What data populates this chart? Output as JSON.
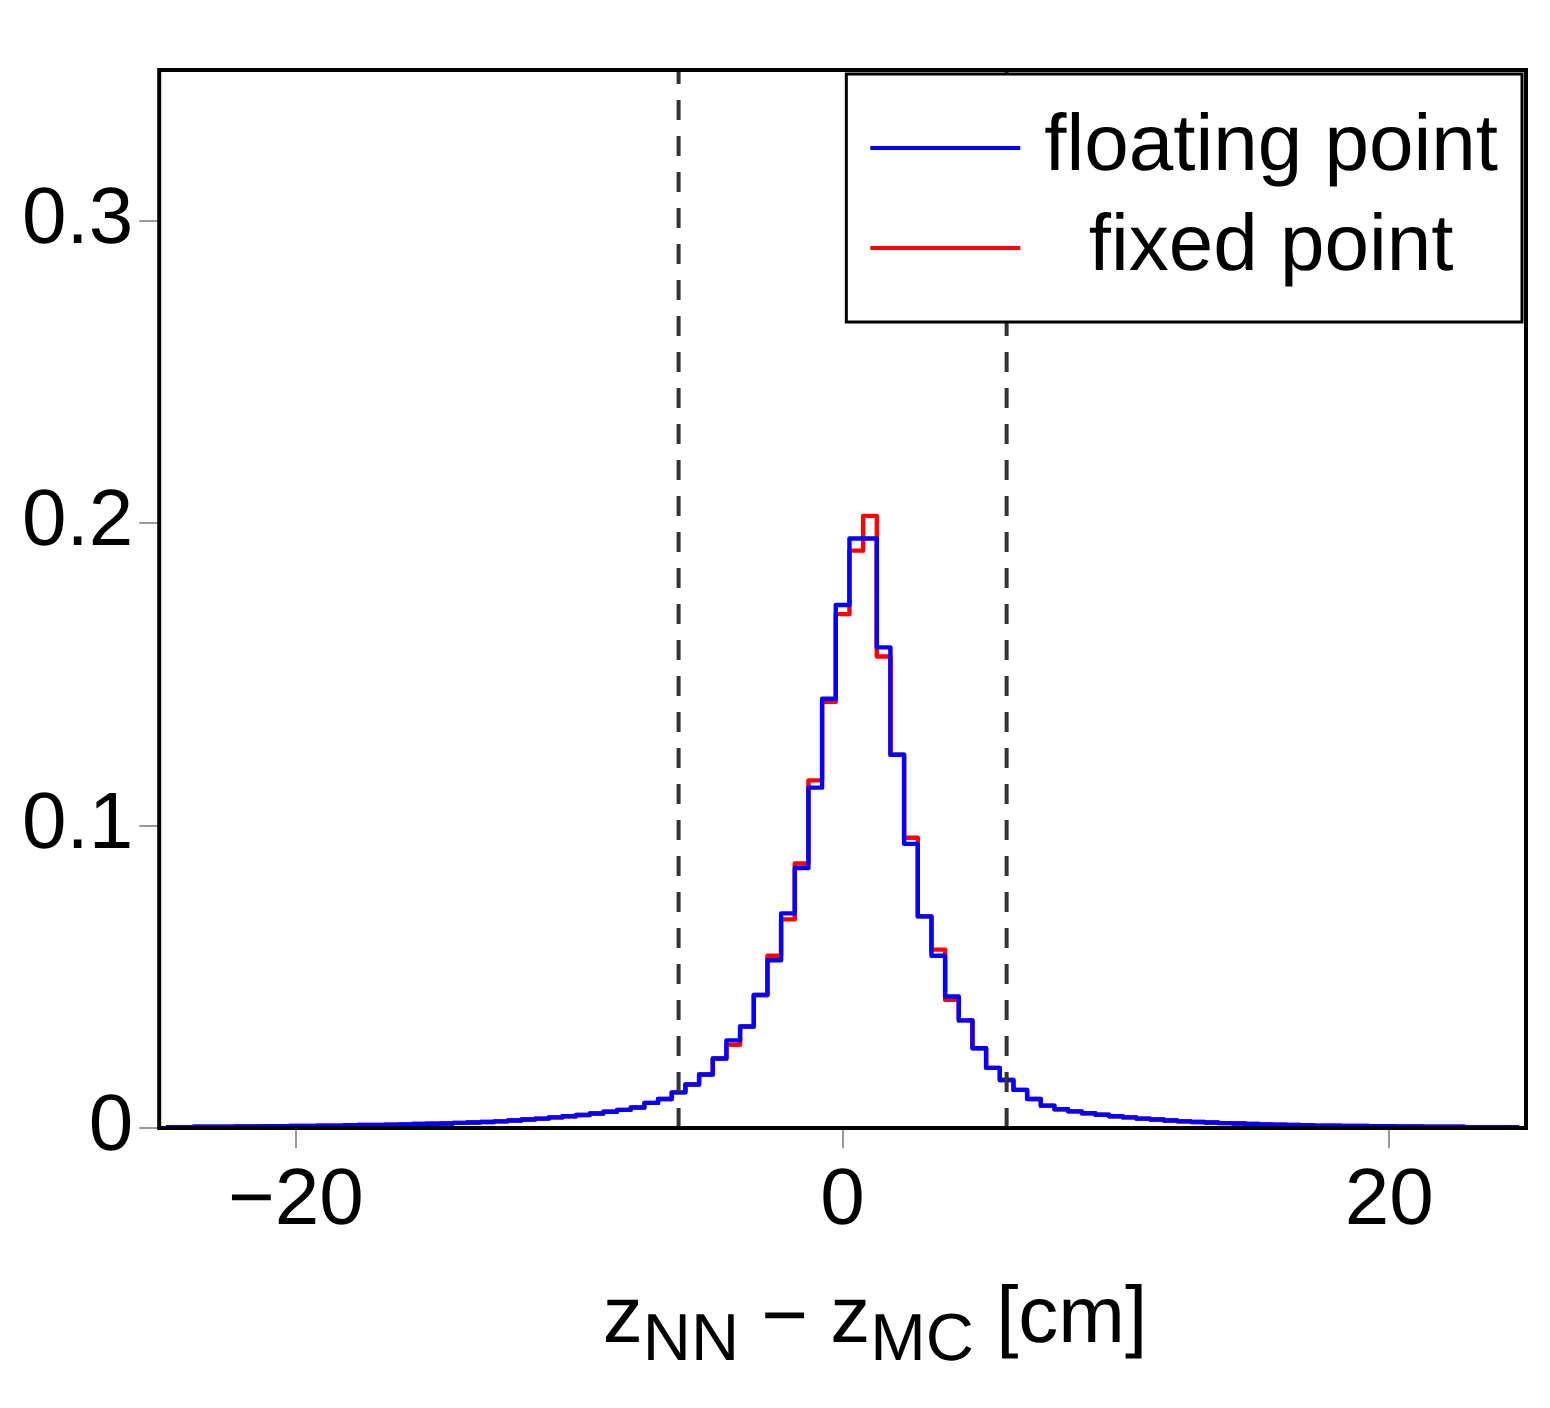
{
  "chart_data": {
    "type": "histogram",
    "xlabel": "z$_{NN}$ − z$_{MC}$ [cm]",
    "bins": [
      -24.75,
      -24.25,
      -23.75,
      -23.25,
      -22.75,
      -22.25,
      -21.75,
      -21.25,
      -20.75,
      -20.25,
      -19.75,
      -19.25,
      -18.75,
      -18.25,
      -17.75,
      -17.25,
      -16.75,
      -16.25,
      -15.75,
      -15.25,
      -14.75,
      -14.25,
      -13.75,
      -13.25,
      -12.75,
      -12.25,
      -11.75,
      -11.25,
      -10.75,
      -10.25,
      -9.75,
      -9.25,
      -8.75,
      -8.25,
      -7.75,
      -7.25,
      -6.75,
      -6.25,
      -5.75,
      -5.25,
      -4.75,
      -4.25,
      -3.75,
      -3.25,
      -2.75,
      -2.25,
      -1.75,
      -1.25,
      -0.75,
      -0.25,
      0.25,
      0.75,
      1.25,
      1.75,
      2.25,
      2.75,
      3.25,
      3.75,
      4.25,
      4.75,
      5.25,
      5.75,
      6.25,
      6.75,
      7.25,
      7.75,
      8.25,
      8.75,
      9.25,
      9.75,
      10.25,
      10.75,
      11.25,
      11.75,
      12.25,
      12.75,
      13.25,
      13.75,
      14.25,
      14.75,
      15.25,
      15.75,
      16.25,
      16.75,
      17.25,
      17.75,
      18.25,
      18.75,
      19.25,
      19.75,
      20.25,
      20.75,
      21.25,
      21.75,
      22.25,
      22.75,
      23.25,
      23.75,
      24.25,
      24.75
    ],
    "series": [
      {
        "name": "floating point",
        "color": "#0000ff",
        "values": [
          0.0003,
          0.0003,
          0.0004,
          0.0004,
          0.0004,
          0.0005,
          0.0005,
          0.0006,
          0.0006,
          0.0007,
          0.0007,
          0.0008,
          0.0008,
          0.0009,
          0.001,
          0.001,
          0.0011,
          0.0012,
          0.0013,
          0.0014,
          0.0015,
          0.0017,
          0.0018,
          0.002,
          0.0022,
          0.0025,
          0.0028,
          0.0031,
          0.0035,
          0.0039,
          0.0043,
          0.0048,
          0.0054,
          0.006,
          0.0068,
          0.0083,
          0.0096,
          0.0118,
          0.0144,
          0.0177,
          0.023,
          0.029,
          0.0336,
          0.044,
          0.0555,
          0.071,
          0.086,
          0.1126,
          0.142,
          0.173,
          0.195,
          0.195,
          0.159,
          0.1235,
          0.094,
          0.07,
          0.057,
          0.0435,
          0.0356,
          0.0264,
          0.0199,
          0.0159,
          0.0126,
          0.0096,
          0.0074,
          0.0062,
          0.0055,
          0.0049,
          0.0044,
          0.0039,
          0.0035,
          0.0031,
          0.0028,
          0.0025,
          0.0022,
          0.002,
          0.0018,
          0.0016,
          0.0015,
          0.0013,
          0.0012,
          0.0011,
          0.001,
          0.0009,
          0.0008,
          0.0008,
          0.0007,
          0.0007,
          0.0006,
          0.0006,
          0.0005,
          0.0005,
          0.0004,
          0.0004,
          0.0004,
          0.0003,
          0.0003,
          0.0003,
          0.0003
        ]
      },
      {
        "name": "fixed point",
        "color": "#ff0000",
        "values": [
          0.0003,
          0.0003,
          0.0004,
          0.0004,
          0.0004,
          0.0005,
          0.0005,
          0.0006,
          0.0006,
          0.0007,
          0.0007,
          0.0008,
          0.0008,
          0.0009,
          0.001,
          0.001,
          0.0011,
          0.0012,
          0.0013,
          0.0014,
          0.0015,
          0.0017,
          0.0018,
          0.002,
          0.0022,
          0.0025,
          0.0028,
          0.0031,
          0.0035,
          0.0039,
          0.0043,
          0.0048,
          0.0054,
          0.006,
          0.0068,
          0.0083,
          0.0096,
          0.0118,
          0.0144,
          0.0177,
          0.023,
          0.0275,
          0.0336,
          0.044,
          0.057,
          0.069,
          0.0875,
          0.115,
          0.141,
          0.17,
          0.191,
          0.2025,
          0.156,
          0.1235,
          0.096,
          0.07,
          0.059,
          0.0424,
          0.0356,
          0.0264,
          0.0199,
          0.0159,
          0.0126,
          0.0096,
          0.0074,
          0.0062,
          0.0055,
          0.0049,
          0.0044,
          0.0039,
          0.0035,
          0.0031,
          0.0028,
          0.0025,
          0.0022,
          0.002,
          0.0018,
          0.0016,
          0.0015,
          0.0013,
          0.0012,
          0.0011,
          0.001,
          0.0009,
          0.0008,
          0.0008,
          0.0007,
          0.0007,
          0.0006,
          0.0006,
          0.0005,
          0.0005,
          0.0004,
          0.0004,
          0.0004,
          0.0003,
          0.0003,
          0.0003,
          0.0003
        ]
      }
    ],
    "xlim": [
      -25,
      25
    ],
    "xticks": [
      {
        "value": -20,
        "label": "−20"
      },
      0,
      20
    ],
    "ylim": [
      0,
      0.35
    ],
    "yticks": [
      0,
      0.1,
      0.2,
      0.3
    ],
    "ref_lines": [
      {
        "axis": "x",
        "value": -6,
        "line_style": "dashed",
        "color": "#333333"
      },
      {
        "axis": "x",
        "value": 6,
        "line_style": "dashed",
        "color": "#333333"
      }
    ],
    "grid": false,
    "legend": "top right",
    "line_style": "solid"
  }
}
